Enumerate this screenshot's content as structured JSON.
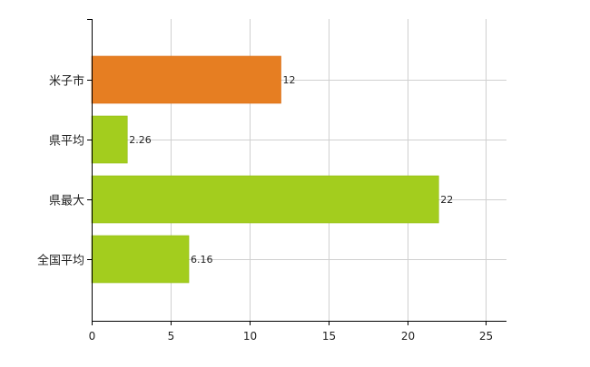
{
  "chart_data": {
    "type": "bar",
    "orientation": "horizontal",
    "categories": [
      "米子市",
      "県平均",
      "県最大",
      "全国平均"
    ],
    "values": [
      12,
      2.26,
      22,
      6.16
    ],
    "value_labels": [
      "12",
      "2.26",
      "22",
      "6.16"
    ],
    "xlim": [
      0,
      26.3
    ],
    "xticks": [
      0,
      5,
      10,
      15,
      20,
      25
    ],
    "xtick_labels": [
      "0",
      "5",
      "10",
      "15",
      "20",
      "25"
    ],
    "grid": true,
    "legend": "none",
    "title": "",
    "xlabel": "",
    "ylabel": "",
    "colors": {
      "highlight": "#E67E22",
      "highlight_edge": "#D86A10",
      "bar": "#A3CD1E",
      "bar_edge": "#93BC12",
      "grid": "#D0D0D0",
      "axis": "#000000"
    },
    "highlight_index": 0
  }
}
